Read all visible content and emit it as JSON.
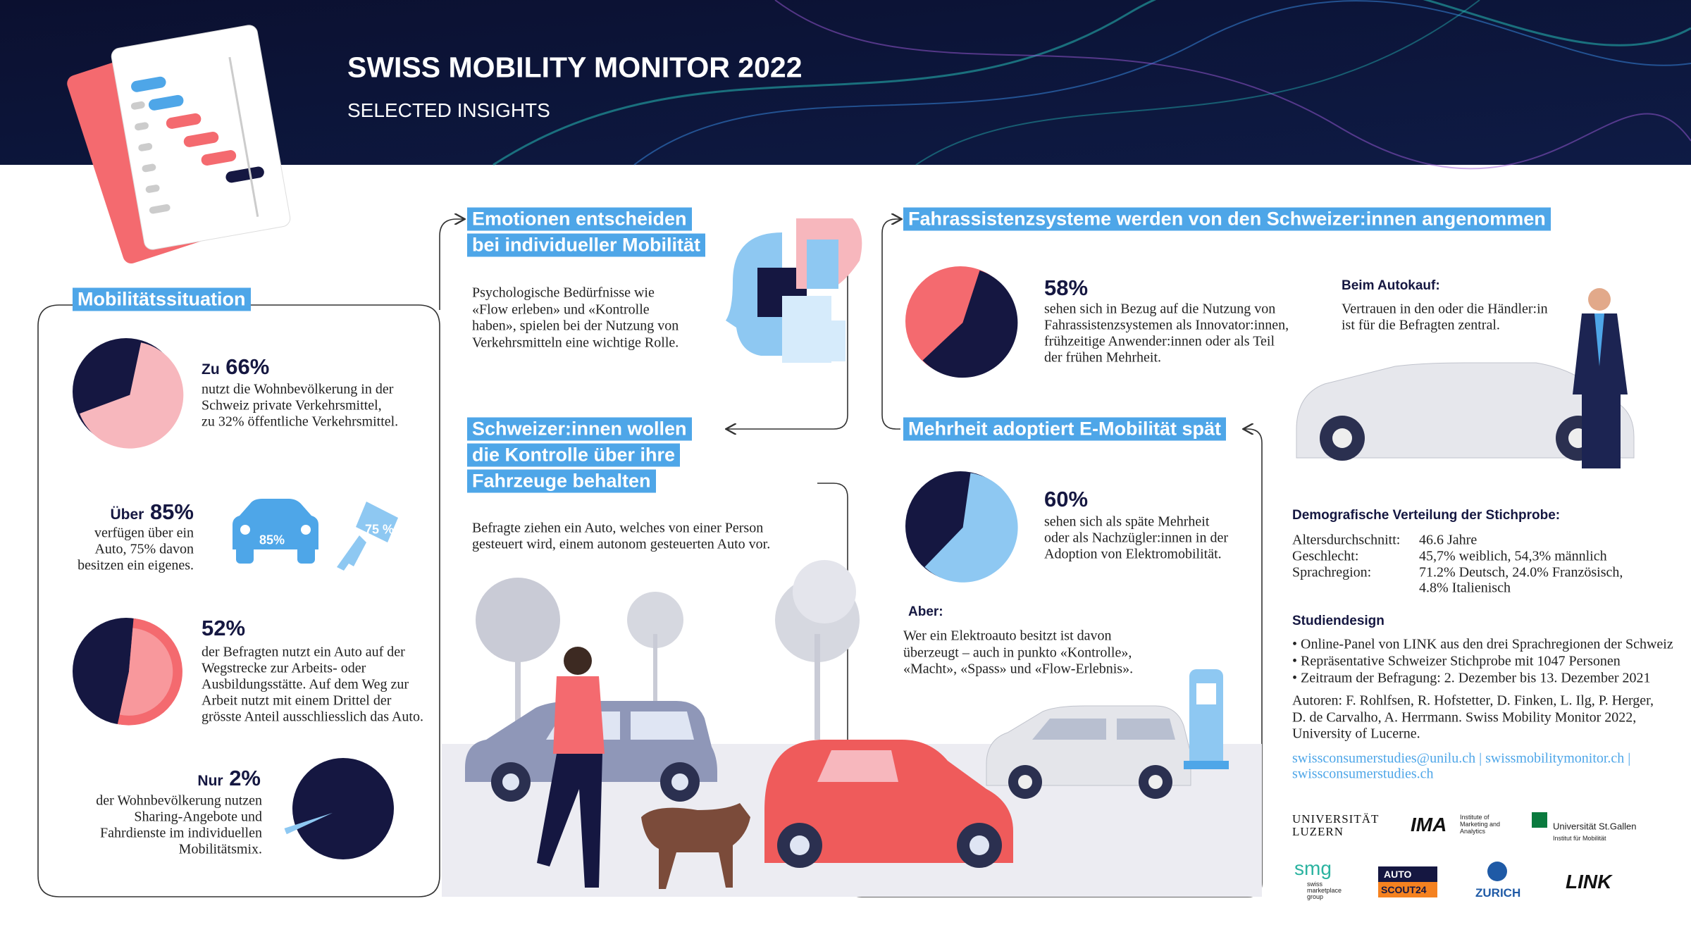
{
  "header": {
    "title": "SWISS MOBILITY MONITOR 2022",
    "subtitle": "SELECTED INSIGHTS"
  },
  "mobility": {
    "heading": "Mobilitätssituation",
    "private": {
      "prefix": "Zu",
      "value": 66,
      "label": "66%",
      "lines": [
        "nutzt die Wohnbevölkerung in der",
        "Schweiz private Verkehrsmittel,",
        "zu 32% öffentliche Verkehrsmittel."
      ]
    },
    "car": {
      "prefix": "Über",
      "label": "85%",
      "lines": [
        "verfügen über ein",
        "Auto, 75% davon",
        "besitzen ein eigenes."
      ],
      "car_icon": "85%",
      "key_icon": "75 %"
    },
    "commute": {
      "value": 52,
      "label": "52%",
      "lines": [
        "der Befragten nutzt ein Auto auf der",
        "Wegstrecke zur Arbeits- oder",
        "Ausbildungsstätte. Auf dem Weg zur",
        "Arbeit nutzt mit einem Drittel der",
        "grösste Anteil ausschliesslich das Auto."
      ]
    },
    "sharing": {
      "prefix": "Nur",
      "value": 2,
      "label": "2%",
      "lines": [
        "der Wohnbevölkerung nutzen",
        "Sharing-Angebote und",
        "Fahrdienste im individuellen",
        "Mobilitätsmix."
      ]
    }
  },
  "emotions": {
    "heading": [
      "Emotionen entscheiden",
      "bei individueller Mobilität"
    ],
    "lines": [
      "Psychologische Bedürfnisse wie",
      "«Flow erleben» und «Kontrolle",
      "haben», spielen bei der Nutzung von",
      "Verkehrsmitteln eine wichtige Rolle."
    ]
  },
  "control": {
    "heading": [
      "Schweizer:innen wollen",
      "die Kontrolle über ihre",
      "Fahrzeuge behalten"
    ],
    "lines": [
      "Befragte ziehen ein Auto, welches von einer Person",
      "gesteuert wird, einem autonom gesteuerten Auto vor."
    ]
  },
  "assist": {
    "heading": "Fahrassistenzsysteme werden von den Schweizer:innen angenommen",
    "value": 58,
    "label": "58%",
    "lines": [
      "sehen sich in Bezug auf die Nutzung von",
      "Fahrassistenzsystemen als Innovator:innen,",
      "frühzeitige Anwender:innen oder als Teil",
      "der frühen Mehrheit."
    ],
    "purchase": {
      "title": "Beim Autokauf:",
      "lines": [
        "Vertrauen in den oder die Händler:in",
        "ist für die Befragten zentral."
      ]
    }
  },
  "emobility": {
    "heading": "Mehrheit adoptiert E-Mobilität spät",
    "value": 60,
    "label": "60%",
    "lines": [
      "sehen sich als späte Mehrheit",
      "oder als Nachzügler:innen in der",
      "Adoption von Elektromobilität."
    ],
    "but": {
      "title": "Aber:",
      "lines": [
        "Wer ein Elektroauto besitzt ist davon",
        "überzeugt – auch in punkto «Kontrolle»,",
        "«Macht», «Spass» und «Flow-Erlebnis»."
      ]
    }
  },
  "demographics": {
    "title": "Demografische Verteilung der Stichprobe:",
    "rows": [
      {
        "label": "Altersdurchschnitt:",
        "lines": [
          "46.6 Jahre"
        ]
      },
      {
        "label": "Geschlecht:",
        "lines": [
          "45,7% weiblich, 54,3% männlich"
        ]
      },
      {
        "label": "Sprachregion:",
        "lines": [
          "71.2% Deutsch, 24.0% Französisch,",
          "4.8% Italienisch"
        ]
      }
    ]
  },
  "study": {
    "title": "Studiendesign",
    "bullets": [
      "• Online-Panel von LINK aus den drei Sprachregionen der Schweiz",
      "• Repräsentative Schweizer Stichprobe mit 1047 Personen",
      "• Zeitraum der Befragung: 2. Dezember bis 13. Dezember 2021"
    ]
  },
  "authors": [
    "Autoren: F. Rohlfsen, R. Hofstetter, D. Finken, L. Ilg, P. Herger,",
    "D. de Carvalho, A. Herrmann. Swiss Mobility Monitor 2022,",
    "University of Lucerne."
  ],
  "links": [
    "swissconsumerstudies@unilu.ch | swissmobilitymonitor.ch |",
    "swissconsumerstudies.ch"
  ],
  "logos": {
    "unilu": [
      "UNIVERSITÄT",
      "LUZERN"
    ],
    "ima": {
      "mark": "IMA",
      "lines": [
        "Institute of",
        "Marketing and",
        "Analytics"
      ]
    },
    "hsg": [
      "Universität St.Gallen",
      "Institut für Mobilität"
    ],
    "smg": {
      "mark": "smg",
      "lines": [
        "swiss",
        "marketplace",
        "group"
      ]
    },
    "autoscout": [
      "AUTO",
      "SCOUT24"
    ],
    "zurich": "ZURICH",
    "link": "LINK"
  }
}
